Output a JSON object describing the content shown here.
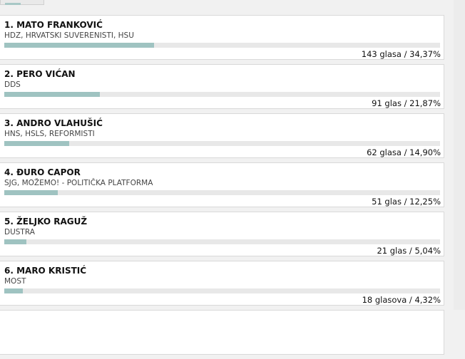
{
  "candidates": [
    {
      "rank_name": "1. MATO FRANKOVIĆ",
      "party": "HDZ, HRVATSKI SUVERENISTI, HSU",
      "result": "143 glasa / 34,37%",
      "percent": 34.37
    },
    {
      "rank_name": "2. PERO VIĆAN",
      "party": "DDS",
      "result": "91 glas / 21,87%",
      "percent": 21.87
    },
    {
      "rank_name": "3. ANDRO VLAHUŠIĆ",
      "party": "HNS, HSLS, REFORMISTI",
      "result": "62 glasa / 14,90%",
      "percent": 14.9
    },
    {
      "rank_name": "4. ĐURO CAPOR",
      "party": "SJG, MOŽEMO! - POLITIČKA PLATFORMA",
      "result": "51 glas / 12,25%",
      "percent": 12.25
    },
    {
      "rank_name": "5. ŽELJKO RAGUŽ",
      "party": "DUSTRA",
      "result": "21 glas / 5,04%",
      "percent": 5.04
    },
    {
      "rank_name": "6. MARO KRISTIĆ",
      "party": "MOST",
      "result": "18 glasova / 4,32%",
      "percent": 4.32
    }
  ],
  "colors": {
    "bar_fill": "#9fc3c1",
    "bar_track": "#e8e8e8"
  }
}
